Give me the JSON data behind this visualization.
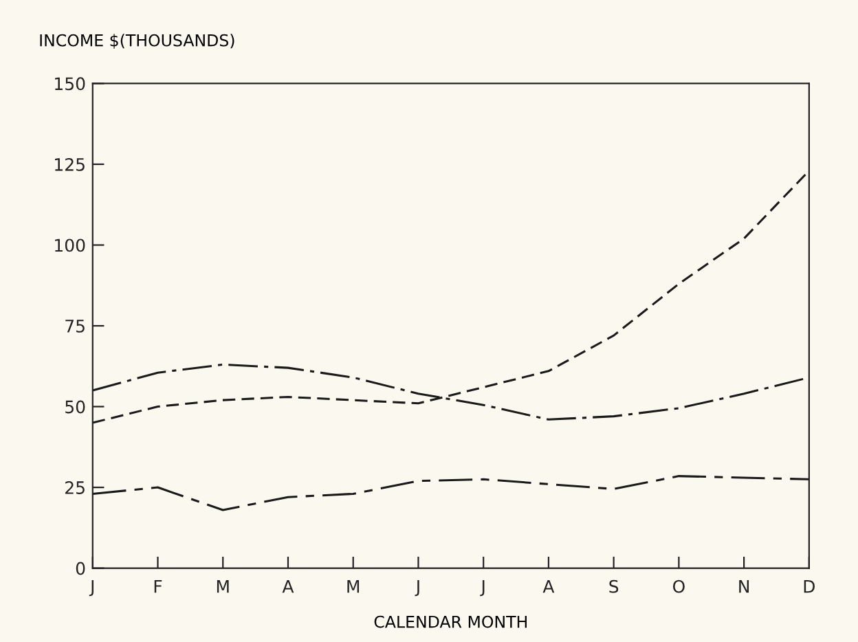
{
  "chart_data": {
    "type": "line",
    "ylabel": "INCOME $(THOUSANDS)",
    "xlabel": "CALENDAR MONTH",
    "categories": [
      "J",
      "F",
      "M",
      "A",
      "M",
      "J",
      "J",
      "A",
      "S",
      "O",
      "N",
      "D"
    ],
    "series": [
      {
        "color": "#1a1a1a",
        "line_style": "dashdot",
        "values": [
          55,
          60.5,
          63,
          62,
          59,
          54,
          50.5,
          46,
          47,
          49.5,
          54,
          59
        ]
      },
      {
        "color": "#1a1a1a",
        "line_style": "dashed",
        "values": [
          45,
          50,
          52,
          53,
          52,
          51,
          56,
          61,
          72,
          88,
          102,
          123
        ]
      },
      {
        "color": "#1a1a1a",
        "line_style": "longdash",
        "values": [
          23,
          25,
          18,
          22,
          23,
          27,
          27.5,
          26,
          24.5,
          28.5,
          28,
          27.5
        ]
      }
    ],
    "ylim": [
      0,
      150
    ],
    "yticks": [
      0,
      25,
      50,
      75,
      100,
      125,
      150
    ],
    "grid": false,
    "legend": false,
    "marker": "none"
  }
}
